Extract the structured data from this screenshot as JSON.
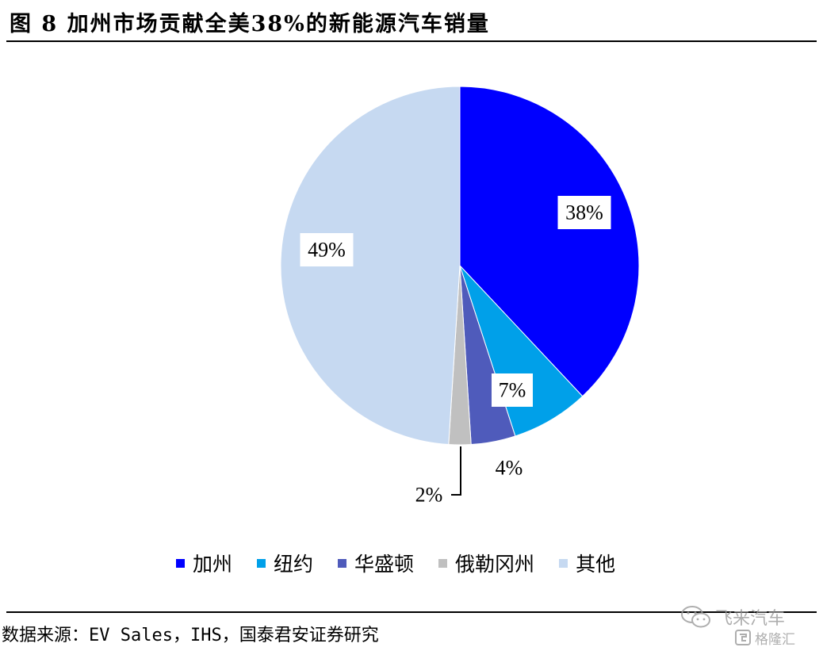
{
  "header": {
    "title": "图 8 加州市场贡献全美38%的新能源汽车销量"
  },
  "chart_data": {
    "type": "pie",
    "start_angle": "12 o'clock",
    "direction": "clockwise",
    "slices": [
      {
        "name": "加州",
        "value": 38,
        "label": "38%",
        "color": "#0000ff"
      },
      {
        "name": "纽约",
        "value": 7,
        "label": "7%",
        "color": "#00a0e9"
      },
      {
        "name": "华盛顿",
        "value": 4,
        "label": "4%",
        "color": "#4f5bbb"
      },
      {
        "name": "俄勒冈州",
        "value": 2,
        "label": "2%",
        "color": "#c0c0c0"
      },
      {
        "name": "其他",
        "value": 49,
        "label": "49%",
        "color": "#c6d9f1"
      }
    ],
    "legend_position": "bottom"
  },
  "source": {
    "text": "数据来源：EV Sales，IHS，国泰君安证券研究"
  },
  "watermark": {
    "line1": "飞来汽车",
    "line2": "格隆汇"
  }
}
